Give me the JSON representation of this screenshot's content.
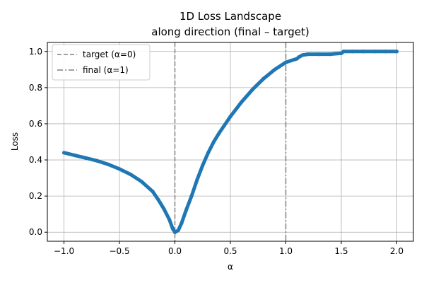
{
  "chart_data": {
    "type": "line",
    "title_lines": [
      "1D Loss Landscape",
      "along direction (final – target)"
    ],
    "xlabel": "α",
    "ylabel": "Loss",
    "xlim": [
      -1.15,
      2.15
    ],
    "ylim": [
      -0.05,
      1.05
    ],
    "xticks": [
      -1.0,
      -0.5,
      0.0,
      0.5,
      1.0,
      1.5,
      2.0
    ],
    "xtick_labels": [
      "−1.0",
      "−0.5",
      "0.0",
      "0.5",
      "1.0",
      "1.5",
      "2.0"
    ],
    "yticks": [
      0.0,
      0.2,
      0.4,
      0.6,
      0.8,
      1.0
    ],
    "ytick_labels": [
      "0.0",
      "0.2",
      "0.4",
      "0.6",
      "0.8",
      "1.0"
    ],
    "grid": true,
    "legend_position": "top-left",
    "series": [
      {
        "color": "#1f77b4",
        "x": [
          -1.0,
          -0.9,
          -0.8,
          -0.7,
          -0.6,
          -0.5,
          -0.4,
          -0.3,
          -0.2,
          -0.15,
          -0.1,
          -0.05,
          -0.02,
          0.0,
          0.03,
          0.06,
          0.1,
          0.15,
          0.2,
          0.25,
          0.3,
          0.35,
          0.4,
          0.5,
          0.6,
          0.7,
          0.8,
          0.9,
          1.0,
          1.05,
          1.1,
          1.12,
          1.15,
          1.2,
          1.3,
          1.4,
          1.45,
          1.5,
          1.52,
          1.6,
          1.7,
          1.8,
          1.9,
          2.0
        ],
        "y": [
          0.44,
          0.425,
          0.41,
          0.395,
          0.375,
          0.35,
          0.32,
          0.28,
          0.225,
          0.18,
          0.13,
          0.07,
          0.02,
          0.0,
          0.01,
          0.05,
          0.12,
          0.2,
          0.29,
          0.37,
          0.44,
          0.5,
          0.55,
          0.64,
          0.72,
          0.79,
          0.85,
          0.9,
          0.94,
          0.95,
          0.96,
          0.97,
          0.98,
          0.985,
          0.985,
          0.985,
          0.988,
          0.99,
          1.0,
          1.0,
          1.0,
          1.0,
          1.0,
          1.0
        ]
      }
    ],
    "vlines": [
      {
        "x": 0.0,
        "label": "target (α=0)",
        "style": "dashed",
        "color": "#808080"
      },
      {
        "x": 1.0,
        "label": "final  (α=1)",
        "style": "dashdot",
        "color": "#808080"
      }
    ]
  }
}
